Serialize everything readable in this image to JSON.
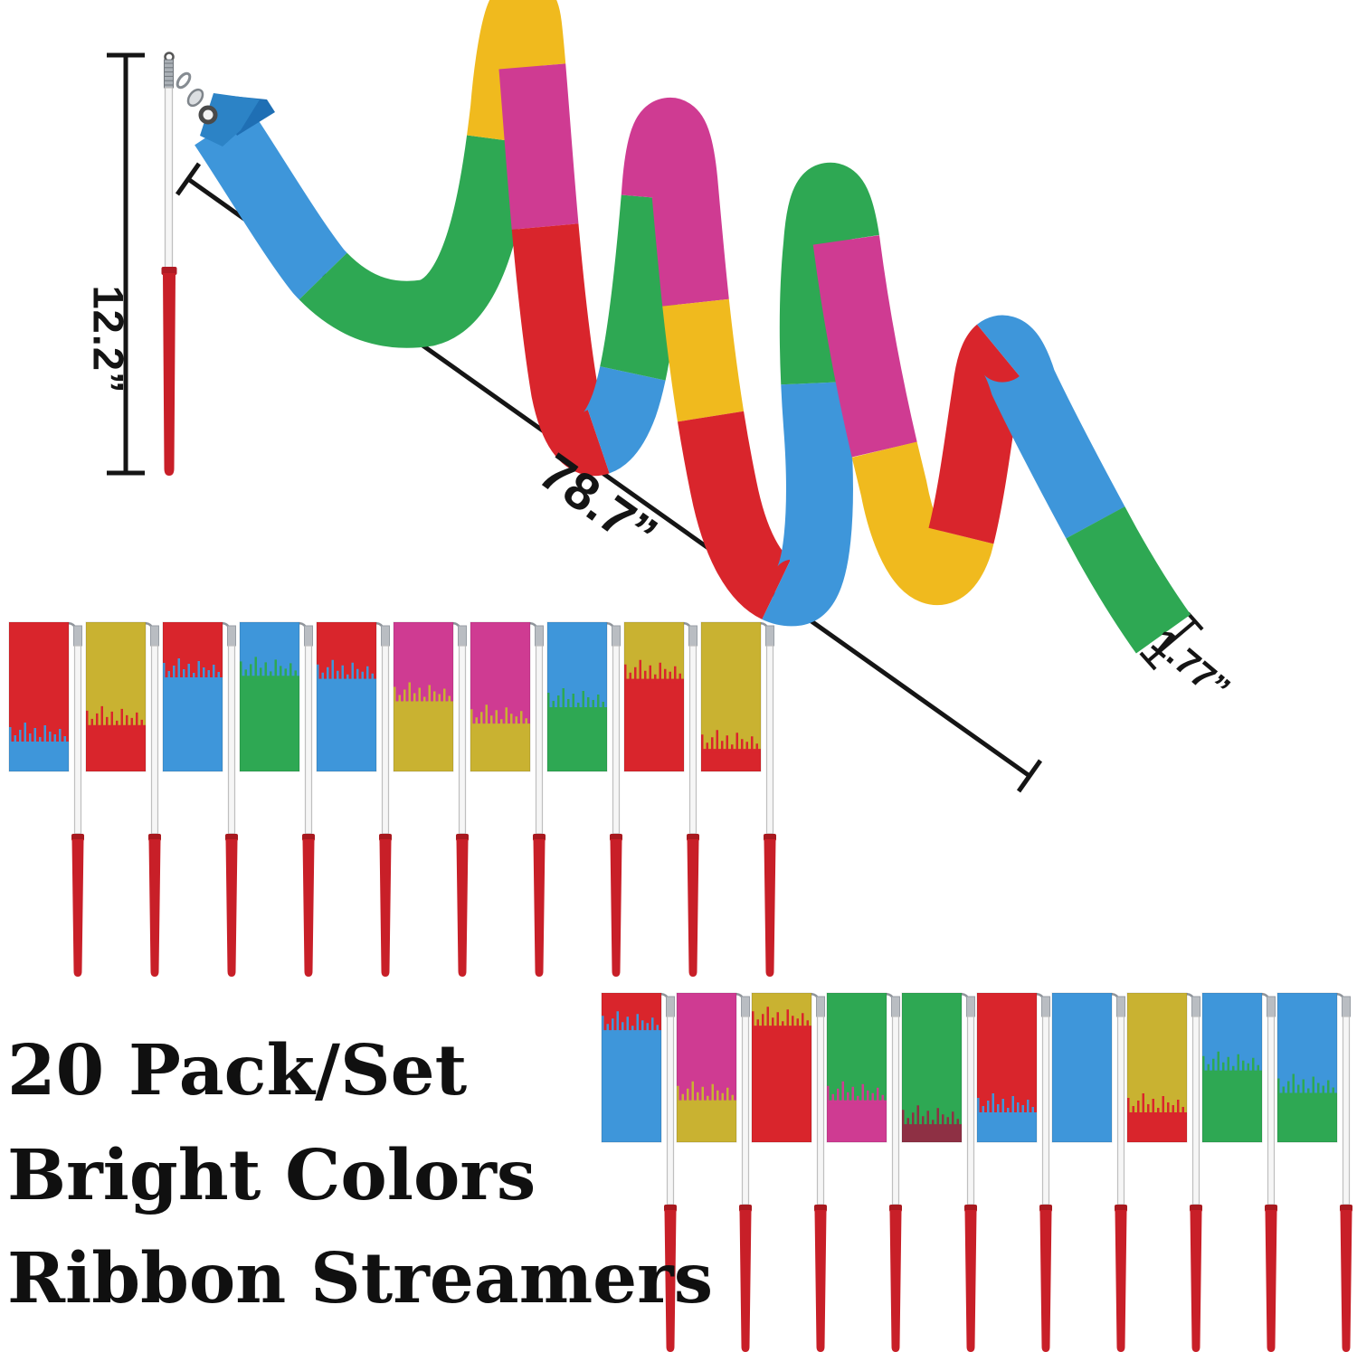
{
  "product_labels": {
    "line1": "20 Pack/Set",
    "line2": "Bright Colors",
    "line3": "Ribbon Streamers"
  },
  "dimensions": {
    "stick_length": "12.2”",
    "ribbon_length": "78.7”",
    "ribbon_width": "1.77”"
  },
  "palette": {
    "red": "#d9252c",
    "blue": "#3e96da",
    "green": "#2ea853",
    "gold": "#c9b231",
    "yellow": "#f0ba1e",
    "pink": "#cf3b92",
    "maroon": "#8e3044",
    "handle": "#c81f28",
    "handleDark": "#a8191f",
    "shaft": "#f6f6f6",
    "shaftEdge": "#bfbfbf",
    "tip": "#b9bdc2",
    "tipDark": "#8f949a",
    "foldBlueFront": "#2c83c6",
    "foldBlueBack": "#1f6fb4",
    "ink": "#151515"
  },
  "spiral": {
    "description": "78.7 inch rainbow gymnastics ribbon spiraling across the top",
    "segments": [
      {
        "color": "blue",
        "end": 0.055
      },
      {
        "color": "green",
        "end": 0.15
      },
      {
        "color": "yellow",
        "end": 0.208
      },
      {
        "color": "pink",
        "end": 0.257
      },
      {
        "color": "red",
        "end": 0.328
      },
      {
        "color": "blue",
        "end": 0.352
      },
      {
        "color": "green",
        "end": 0.406
      },
      {
        "color": "pink",
        "end": 0.481
      },
      {
        "color": "yellow",
        "end": 0.516
      },
      {
        "color": "red",
        "end": 0.574
      },
      {
        "color": "blue",
        "end": 0.646
      },
      {
        "color": "green",
        "end": 0.719
      },
      {
        "color": "pink",
        "end": 0.784
      },
      {
        "color": "yellow",
        "end": 0.84
      },
      {
        "color": "red",
        "end": 0.898
      },
      {
        "color": "blue",
        "end": 0.96
      },
      {
        "color": "green",
        "end": 1.0
      }
    ]
  },
  "rows": {
    "row1": [
      {
        "top": "red",
        "bottom": "blue",
        "split": 0.8
      },
      {
        "top": "gold",
        "bottom": "red",
        "split": 0.69
      },
      {
        "top": "red",
        "bottom": "blue",
        "split": 0.37
      },
      {
        "top": "blue",
        "bottom": "green",
        "split": 0.36
      },
      {
        "top": "red",
        "bottom": "blue",
        "split": 0.38
      },
      {
        "top": "pink",
        "bottom": "gold",
        "split": 0.53
      },
      {
        "top": "pink",
        "bottom": "gold",
        "split": 0.68
      },
      {
        "top": "blue",
        "bottom": "green",
        "split": 0.57
      },
      {
        "top": "gold",
        "bottom": "red",
        "split": 0.38
      },
      {
        "top": "gold",
        "bottom": "red",
        "split": 0.85
      }
    ],
    "row2": [
      {
        "top": "red",
        "bottom": "blue",
        "split": 0.25
      },
      {
        "top": "pink",
        "bottom": "gold",
        "split": 0.72
      },
      {
        "top": "gold",
        "bottom": "red",
        "split": 0.22
      },
      {
        "top": "green",
        "bottom": "pink",
        "split": 0.72
      },
      {
        "top": "green",
        "bottom": "maroon",
        "split": 0.88
      },
      {
        "top": "red",
        "bottom": "blue",
        "split": 0.8
      },
      {
        "top": "blue",
        "bottom": "blue",
        "split": 1.0
      },
      {
        "top": "gold",
        "bottom": "red",
        "split": 0.8
      },
      {
        "top": "blue",
        "bottom": "green",
        "split": 0.52
      },
      {
        "top": "blue",
        "bottom": "green",
        "split": 0.67
      }
    ]
  }
}
